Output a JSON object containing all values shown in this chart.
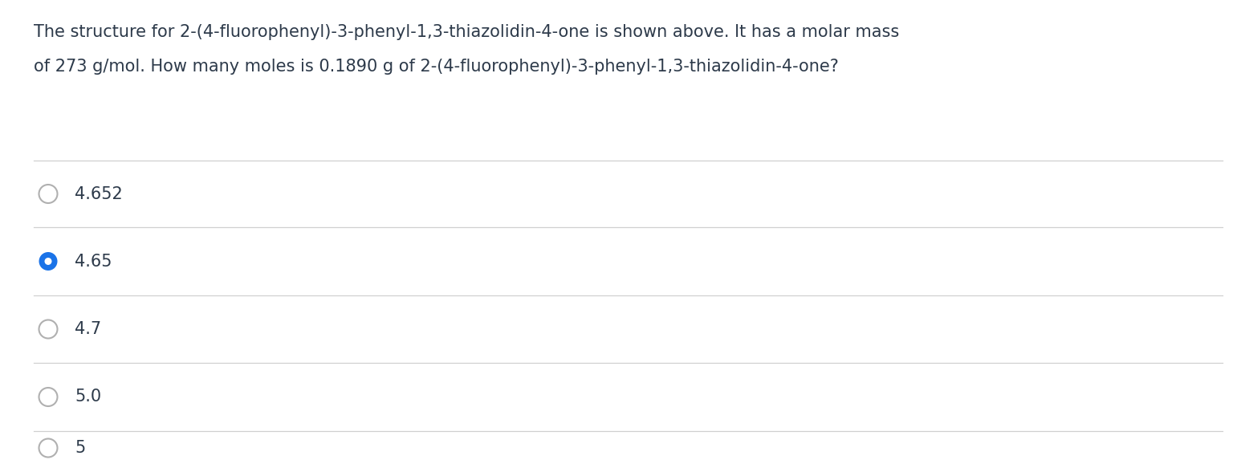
{
  "question_line1": "The structure for 2-(4-fluorophenyl)-3-phenyl-1,3-thiazolidin-4-one is shown above. It has a molar mass",
  "question_line2": "of 273 g/mol. How many moles is 0.1890 g of 2-(4-fluorophenyl)-3-phenyl-1,3-thiazolidin-4-one?",
  "options": [
    "4.652",
    "4.65",
    "4.7",
    "5.0",
    "5"
  ],
  "selected_index": 1,
  "bg_color": "#ffffff",
  "text_color": "#2d3a4a",
  "divider_color": "#d0d0d0",
  "radio_selected_fill": "#1a73e8",
  "radio_selected_dot": "#ffffff",
  "radio_unselected_fill": "#ffffff",
  "radio_unselected_border": "#b0b0b0",
  "font_size_question": 15.0,
  "font_size_options": 15.0,
  "option_font_color": "#2d3a4a",
  "fig_width": 15.46,
  "fig_height": 5.78,
  "dpi": 100
}
